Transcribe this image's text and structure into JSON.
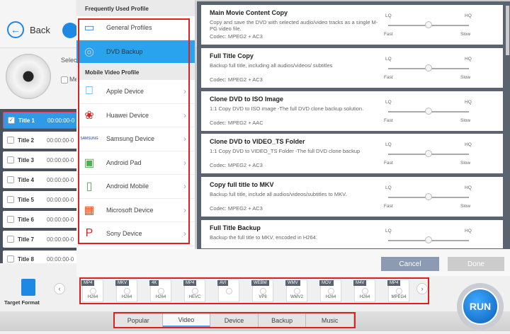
{
  "header": {
    "back_label": "Back"
  },
  "source": {
    "select_label": "Selecte",
    "merge_label": "Me"
  },
  "titles": [
    {
      "name": "Title 1",
      "time": "00:00:00-0",
      "checked": true
    },
    {
      "name": "Title 2",
      "time": "00:00:00-0",
      "checked": false
    },
    {
      "name": "Title 3",
      "time": "00:00:00-0",
      "checked": false
    },
    {
      "name": "Title 4",
      "time": "00:00:00-0",
      "checked": false
    },
    {
      "name": "Title 5",
      "time": "00:00:00-0",
      "checked": false
    },
    {
      "name": "Title 6",
      "time": "00:00:00-0",
      "checked": false
    },
    {
      "name": "Title 7",
      "time": "00:00:00-0",
      "checked": false
    },
    {
      "name": "Title 8",
      "time": "00:00:00-0",
      "checked": false
    }
  ],
  "profile_menu": {
    "frequent_header": "Frequently Used Profile",
    "frequent": [
      {
        "label": "General Profiles",
        "icon": "monitor-icon"
      },
      {
        "label": "DVD Backup",
        "icon": "disc-icon",
        "selected": true
      }
    ],
    "mobile_header": "Mobile Video Profile",
    "mobile": [
      {
        "label": "Apple Device",
        "icon": "apple-icon"
      },
      {
        "label": "Huawei Device",
        "icon": "huawei-icon"
      },
      {
        "label": "Samsung Device",
        "icon": "samsung-icon"
      },
      {
        "label": "Android Pad",
        "icon": "android-pad-icon"
      },
      {
        "label": "Android Mobile",
        "icon": "android-mobile-icon"
      },
      {
        "label": "Microsoft Device",
        "icon": "microsoft-icon"
      },
      {
        "label": "Sony Device",
        "icon": "playstation-icon"
      }
    ]
  },
  "quality": {
    "lq": "LQ",
    "hq": "HQ",
    "fast": "Fast",
    "slow": "Slow"
  },
  "profiles": [
    {
      "title": "Main Movie Content Copy",
      "desc": "Copy and save the DVD with selected audio/video tracks as a single M-PG video file.",
      "codec": "Codec: MPEG2 + AC3",
      "quality": 0.5
    },
    {
      "title": "Full Title Copy",
      "desc": "Backup full title, including all audios/videos/ subtitles",
      "codec": "Codec: MPEG2 + AC3",
      "quality": 0.5
    },
    {
      "title": "Clone DVD to ISO Image",
      "desc": "1:1 Copy DVD to ISO image -The full DVD clone backup solution.",
      "codec": "Codec: MPEG2 + AAC",
      "quality": 0.5
    },
    {
      "title": "Clone DVD to VIDEO_TS Folder",
      "desc": "1:1 Copy DVD to VIDEO_TS Folder -The full DVD clone backup",
      "codec": "Codec: MPEG2 + AC3",
      "quality": 0.5
    },
    {
      "title": "Copy full title to MKV",
      "desc": "Backup full title, include all audios/videos/subtitles to MKV.",
      "codec": "Codec: MPEG2 + AC3",
      "quality": 0.5
    },
    {
      "title": "Full Title Backup",
      "desc": "Backup the full title to MKV, encoded in H264.",
      "codec": "",
      "quality": 0.5
    }
  ],
  "dialog": {
    "cancel": "Cancel",
    "done": "Done"
  },
  "target_format": {
    "label": "Target Format"
  },
  "formats": [
    {
      "tag": "MP4",
      "codec": "H264"
    },
    {
      "tag": "MKV",
      "codec": "H264"
    },
    {
      "tag": "4K",
      "codec": "H264"
    },
    {
      "tag": "MP4",
      "codec": "HEVC"
    },
    {
      "tag": "AVI",
      "codec": ""
    },
    {
      "tag": "WEBM",
      "codec": "VP8"
    },
    {
      "tag": "WMV",
      "codec": "WMV2"
    },
    {
      "tag": "MOV",
      "codec": "H264"
    },
    {
      "tag": "M4V",
      "codec": "H264"
    },
    {
      "tag": "MP4",
      "codec": "MPEG4"
    }
  ],
  "tabs": [
    {
      "label": "Popular"
    },
    {
      "label": "Video",
      "active": true
    },
    {
      "label": "Device"
    },
    {
      "label": "Backup"
    },
    {
      "label": "Music"
    }
  ],
  "run_label": "RUN",
  "colors": {
    "accent": "#2aa3ef",
    "highlight": "#e02020",
    "cancel": "#8d9ab3"
  }
}
